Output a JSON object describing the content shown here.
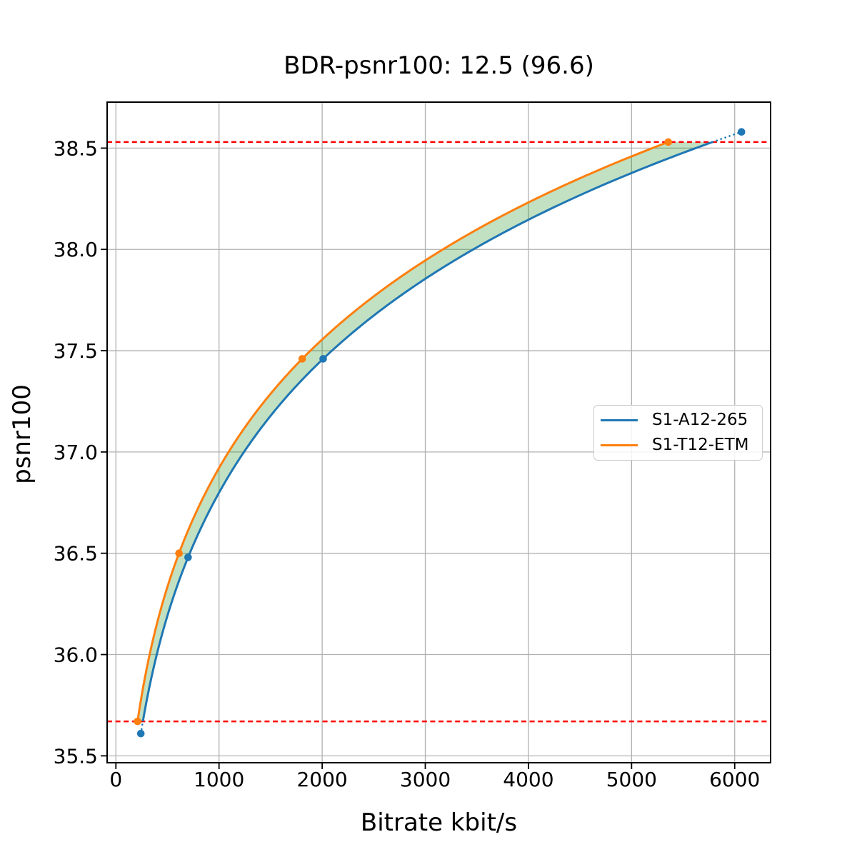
{
  "chart_data": {
    "type": "line",
    "title": "BDR-psnr100: 12.5 (96.6)",
    "xlabel": "Bitrate kbit/s",
    "ylabel": "psnr100",
    "xlim": [
      -85,
      6348
    ],
    "ylim": [
      35.466,
      38.727
    ],
    "xticks": [
      0,
      1000,
      2000,
      3000,
      4000,
      5000,
      6000
    ],
    "xtick_labels": [
      "0",
      "1000",
      "2000",
      "3000",
      "4000",
      "5000",
      "6000"
    ],
    "yticks": [
      35.5,
      36.0,
      36.5,
      37.0,
      37.5,
      38.0,
      38.5
    ],
    "ytick_labels": [
      "35.5",
      "36.0",
      "36.5",
      "37.0",
      "37.5",
      "38.0",
      "38.5"
    ],
    "grid": true,
    "grid_color": "#b1b1b1",
    "interpolation": "pchip-log-x",
    "series": [
      {
        "name": "S1-A12-265",
        "color": "#1f77b4",
        "marker": "circle",
        "x": [
          242,
          700,
          2010,
          6066
        ],
        "y": [
          35.61,
          36.48,
          37.46,
          38.58
        ]
      },
      {
        "name": "S1-T12-ETM",
        "color": "#ff7f0e",
        "marker": "circle",
        "x": [
          210,
          612,
          1807,
          5356
        ],
        "y": [
          35.67,
          36.5,
          37.46,
          38.53
        ]
      }
    ],
    "reference_lines": {
      "color": "#ff0000",
      "style": "dashed",
      "values": [
        35.67,
        38.53
      ]
    },
    "fill_between": {
      "color": "rgba(0,128,0,0.24)",
      "from": 35.67,
      "to": 38.53
    },
    "legend": {
      "position": "center-right",
      "entries": [
        "S1-A12-265",
        "S1-T12-ETM"
      ]
    }
  }
}
